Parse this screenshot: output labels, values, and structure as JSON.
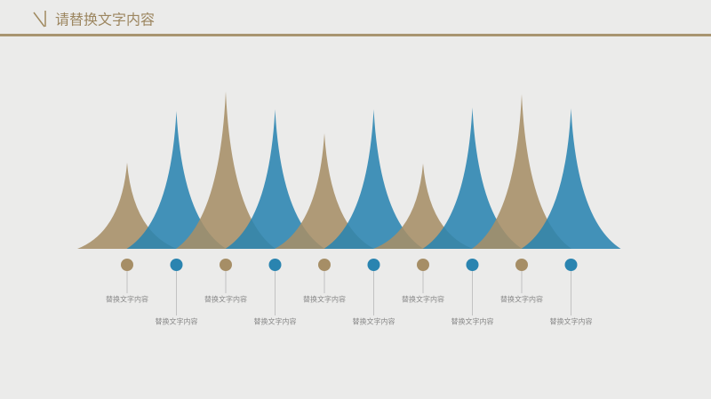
{
  "chart_data": {
    "type": "spike",
    "title": "请替换文字内容",
    "categories": [
      "替换文字内容",
      "替换文字内容",
      "替换文字内容",
      "替换文字内容",
      "替换文字内容",
      "替换文字内容",
      "替换文字内容",
      "替换文字内容",
      "替换文字内容",
      "替换文字内容"
    ],
    "values": [
      97,
      155,
      177,
      157,
      130,
      157,
      96,
      159,
      174,
      158
    ],
    "colors": [
      "#a68e66",
      "#2a84b0",
      "#a68e66",
      "#2a84b0",
      "#a68e66",
      "#2a84b0",
      "#a68e66",
      "#2a84b0",
      "#a68e66",
      "#2a84b0"
    ]
  }
}
